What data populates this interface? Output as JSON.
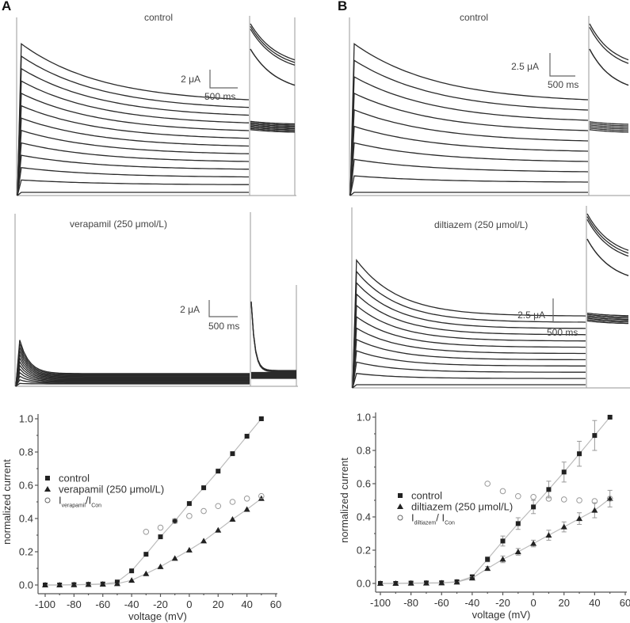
{
  "panels": {
    "A": {
      "letter": "A"
    },
    "B": {
      "letter": "B"
    }
  },
  "traces": [
    {
      "id": "A-control",
      "title": "control",
      "scale_current": "2 μA",
      "scale_time": "500 ms",
      "n_sweeps": 13,
      "profile": "slow-decay"
    },
    {
      "id": "A-drug",
      "title": "verapamil (250 μmol/L)",
      "scale_current": "2 μA",
      "scale_time": "500 ms",
      "n_sweeps": 13,
      "profile": "fast-block"
    },
    {
      "id": "B-control",
      "title": "control",
      "scale_current": "2.5 μA",
      "scale_time": "500 ms",
      "n_sweeps": 10,
      "profile": "slow-decay"
    },
    {
      "id": "B-drug",
      "title": "diltiazem (250 μmol/L)",
      "scale_current": "2.5 μA",
      "scale_time": "500 ms",
      "n_sweeps": 12,
      "profile": "partial-block"
    }
  ],
  "chart_data": [
    {
      "type": "scatter",
      "panel": "A",
      "xlabel": "voltage (mV)",
      "ylabel": "normalized current",
      "xlim": [
        -100,
        60
      ],
      "ylim": [
        0,
        1.0
      ],
      "xticks": [
        -100,
        -80,
        -60,
        -40,
        -20,
        0,
        20,
        40,
        60
      ],
      "yticks": [
        0.0,
        0.2,
        0.4,
        0.6,
        0.8,
        1.0
      ],
      "ytick_labels": [
        "0.0",
        "0.2",
        "0.4",
        "0.6",
        "0.8",
        "1.0"
      ],
      "legend_position": "center-left",
      "series": [
        {
          "name": "control",
          "marker": "square",
          "line": true,
          "x": [
            -100,
            -90,
            -80,
            -70,
            -60,
            -50,
            -40,
            -30,
            -20,
            -10,
            0,
            10,
            20,
            30,
            40,
            50
          ],
          "y": [
            0.0,
            0.0,
            0.002,
            0.004,
            0.006,
            0.018,
            0.085,
            0.185,
            0.29,
            0.385,
            0.49,
            0.585,
            0.685,
            0.79,
            0.895,
            1.0
          ]
        },
        {
          "name": "verapamil (250 μmol/L)",
          "marker": "triangle",
          "line": true,
          "x": [
            -100,
            -90,
            -80,
            -70,
            -60,
            -50,
            -40,
            -30,
            -20,
            -10,
            0,
            10,
            20,
            30,
            40,
            50
          ],
          "y": [
            0.0,
            0.0,
            0.001,
            0.003,
            0.005,
            0.008,
            0.028,
            0.068,
            0.11,
            0.16,
            0.21,
            0.265,
            0.33,
            0.395,
            0.455,
            0.52
          ]
        },
        {
          "name": "I_verapamil/I_Con",
          "legend_main": "I",
          "legend_sub1": "verapamil",
          "legend_mid": "/I",
          "legend_sub2": "Con",
          "marker": "circle-open",
          "line": false,
          "x": [
            -30,
            -20,
            -10,
            0,
            10,
            20,
            30,
            40,
            50
          ],
          "y": [
            0.32,
            0.345,
            0.385,
            0.415,
            0.445,
            0.475,
            0.5,
            0.52,
            0.535
          ]
        }
      ]
    },
    {
      "type": "scatter",
      "panel": "B",
      "xlabel": "voltage (mV)",
      "ylabel": "normalized current",
      "xlim": [
        -100,
        60
      ],
      "ylim": [
        0,
        1.0
      ],
      "xticks": [
        -100,
        -80,
        -60,
        -40,
        -20,
        0,
        20,
        40,
        60
      ],
      "yticks": [
        0.0,
        0.2,
        0.4,
        0.6,
        0.8,
        1.0
      ],
      "ytick_labels": [
        "0.0",
        "0.2",
        "0.4",
        "0.6",
        "0.8",
        "1.0"
      ],
      "legend_position": "center-left",
      "series": [
        {
          "name": "control",
          "marker": "square",
          "line": true,
          "x": [
            -100,
            -90,
            -80,
            -70,
            -60,
            -50,
            -40,
            -30,
            -20,
            -10,
            0,
            10,
            20,
            30,
            40,
            50
          ],
          "y": [
            0.0,
            0.0,
            0.002,
            0.003,
            0.004,
            0.01,
            0.04,
            0.145,
            0.255,
            0.36,
            0.46,
            0.565,
            0.67,
            0.78,
            0.89,
            1.0
          ],
          "err": [
            0,
            0,
            0,
            0,
            0,
            0,
            0.01,
            0.015,
            0.03,
            0.035,
            0.04,
            0.05,
            0.06,
            0.075,
            0.09,
            0
          ]
        },
        {
          "name": "diltiazem (250 μmol/L)",
          "marker": "triangle",
          "line": true,
          "x": [
            -100,
            -90,
            -80,
            -70,
            -60,
            -50,
            -40,
            -30,
            -20,
            -10,
            0,
            10,
            20,
            30,
            40,
            50
          ],
          "y": [
            0.0,
            0.0,
            0.001,
            0.002,
            0.003,
            0.008,
            0.032,
            0.09,
            0.145,
            0.19,
            0.24,
            0.29,
            0.34,
            0.39,
            0.44,
            0.51
          ],
          "err": [
            0,
            0,
            0,
            0,
            0,
            0,
            0.008,
            0.012,
            0.02,
            0.02,
            0.02,
            0.03,
            0.03,
            0.035,
            0.045,
            0.05
          ]
        },
        {
          "name": "I_diltiazem/I_Con",
          "legend_main": "I",
          "legend_sub1": "diltiazem",
          "legend_mid": "/ I",
          "legend_sub2": "Con",
          "marker": "circle-open",
          "line": false,
          "x": [
            -30,
            -20,
            -10,
            0,
            10,
            20,
            30,
            40,
            50
          ],
          "y": [
            0.6,
            0.555,
            0.525,
            0.52,
            0.51,
            0.505,
            0.5,
            0.495,
            0.51
          ]
        }
      ]
    }
  ]
}
